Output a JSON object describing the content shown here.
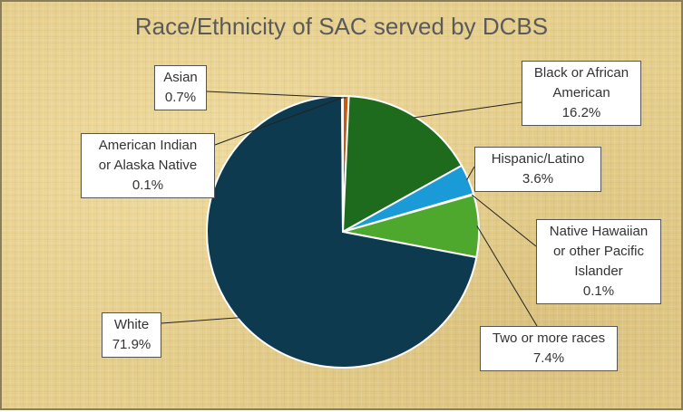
{
  "chart_data": {
    "type": "pie",
    "title": "Race/Ethnicity of SAC served by DCBS",
    "slices": [
      {
        "name": "Asian",
        "value": 0.7,
        "label": "0.7%",
        "color": "#c55a11"
      },
      {
        "name": "Black or African American",
        "value": 16.2,
        "label": "16.2%",
        "color": "#1e6b1e"
      },
      {
        "name": "Hispanic/Latino",
        "value": 3.6,
        "label": "3.6%",
        "color": "#1a9ad6"
      },
      {
        "name": "Native Hawaiian or other Pacific Islander",
        "value": 0.1,
        "label": "0.1%",
        "color": "#2e8b57"
      },
      {
        "name": "Two or more races",
        "value": 7.4,
        "label": "7.4%",
        "color": "#4fa82e"
      },
      {
        "name": "White",
        "value": 71.9,
        "label": "71.9%",
        "color": "#0e3a4f"
      },
      {
        "name": "American Indian or Alaska Native",
        "value": 0.1,
        "label": "0.1%",
        "color": "#7f7f7f"
      }
    ]
  }
}
